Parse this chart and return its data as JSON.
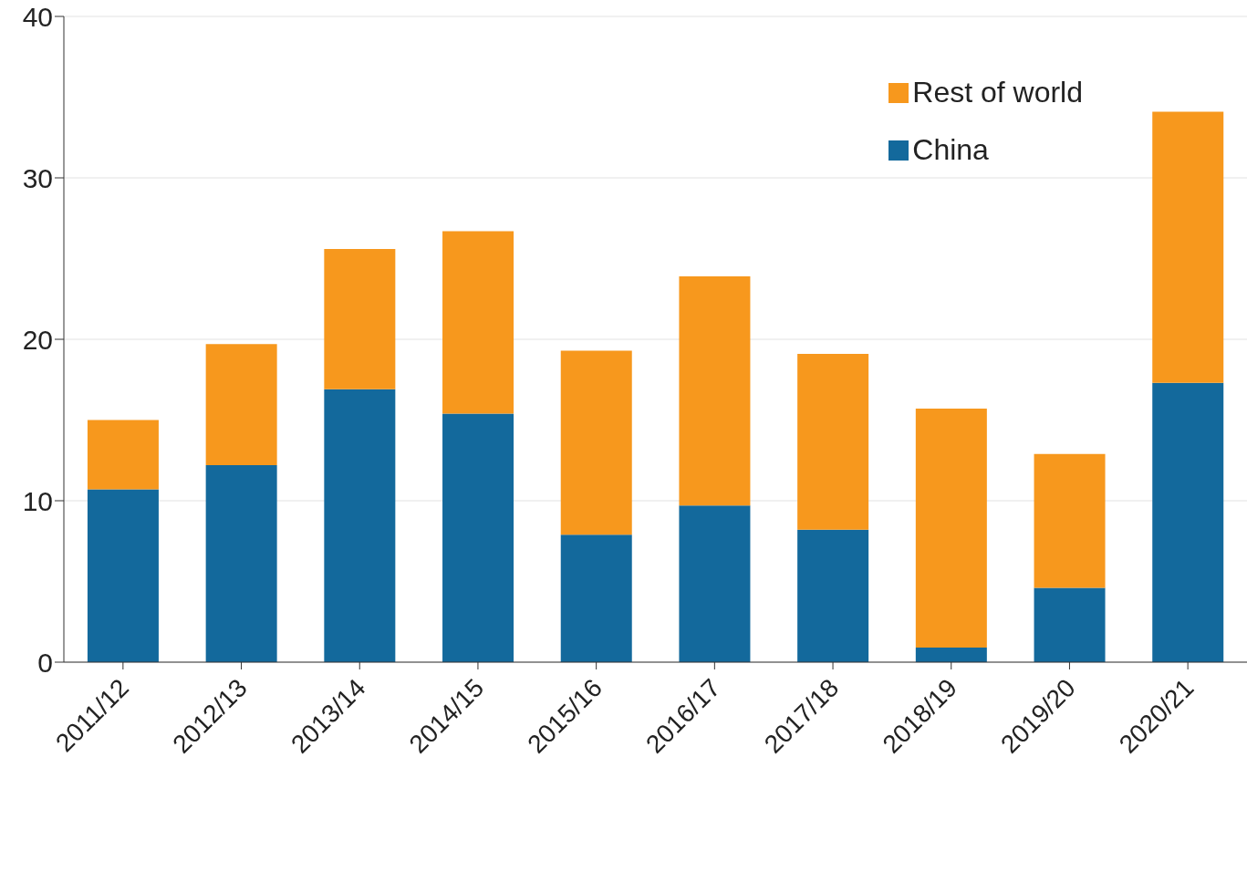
{
  "chart_data": {
    "type": "bar",
    "stacked": true,
    "categories": [
      "2011/12",
      "2012/13",
      "2013/14",
      "2014/15",
      "2015/16",
      "2016/17",
      "2017/18",
      "2018/19",
      "2019/20",
      "2020/21"
    ],
    "series": [
      {
        "name": "China",
        "color": "#13699c",
        "values": [
          10.7,
          12.2,
          16.9,
          15.4,
          7.9,
          9.7,
          8.2,
          0.9,
          4.6,
          17.3
        ]
      },
      {
        "name": "Rest of world",
        "color": "#f7981d",
        "values": [
          4.3,
          7.5,
          8.7,
          11.3,
          11.4,
          14.2,
          10.9,
          14.8,
          8.3,
          16.8
        ]
      }
    ],
    "ylim": [
      0,
      40
    ],
    "yticks": [
      0,
      10,
      20,
      30,
      40
    ],
    "grid": "y",
    "legend": "top right"
  }
}
